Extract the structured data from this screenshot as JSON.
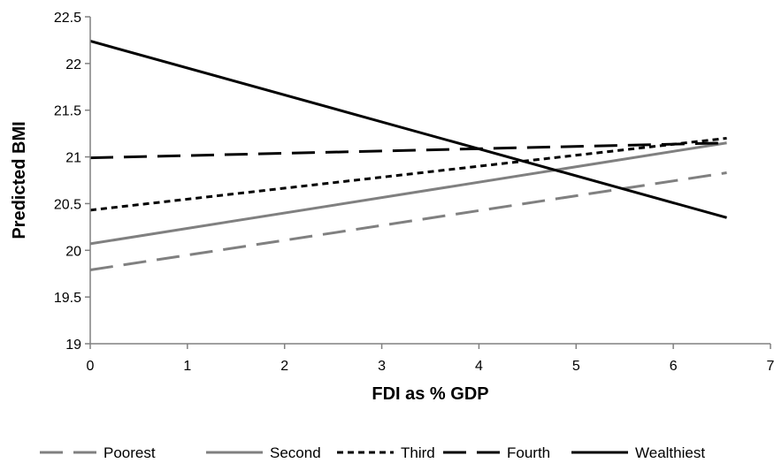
{
  "chart_data": {
    "type": "line",
    "xlabel": "FDI as % GDP",
    "ylabel": "Predicted BMI",
    "xlim": [
      0,
      7
    ],
    "ylim": [
      19,
      22.5
    ],
    "x_ticks": [
      "0",
      "1",
      "2",
      "3",
      "4",
      "5",
      "6",
      "7"
    ],
    "y_ticks": [
      "19",
      "19.5",
      "20",
      "20.5",
      "21",
      "21.5",
      "22",
      "22.5"
    ],
    "grid": false,
    "legend_position": "bottom",
    "series": [
      {
        "name": "Poorest",
        "x": [
          0,
          6.55
        ],
        "y": [
          19.79,
          20.83
        ],
        "color": "#808080",
        "style": "long-dash"
      },
      {
        "name": "Second",
        "x": [
          0,
          6.55
        ],
        "y": [
          20.07,
          21.15
        ],
        "color": "#808080",
        "style": "solid"
      },
      {
        "name": "Third",
        "x": [
          0,
          6.55
        ],
        "y": [
          20.43,
          21.2
        ],
        "color": "#000000",
        "style": "short-dash"
      },
      {
        "name": "Fourth",
        "x": [
          0,
          6.55
        ],
        "y": [
          20.99,
          21.15
        ],
        "color": "#000000",
        "style": "long-dash"
      },
      {
        "name": "Wealthiest",
        "x": [
          0,
          6.55
        ],
        "y": [
          22.24,
          20.35
        ],
        "color": "#000000",
        "style": "solid"
      }
    ]
  }
}
